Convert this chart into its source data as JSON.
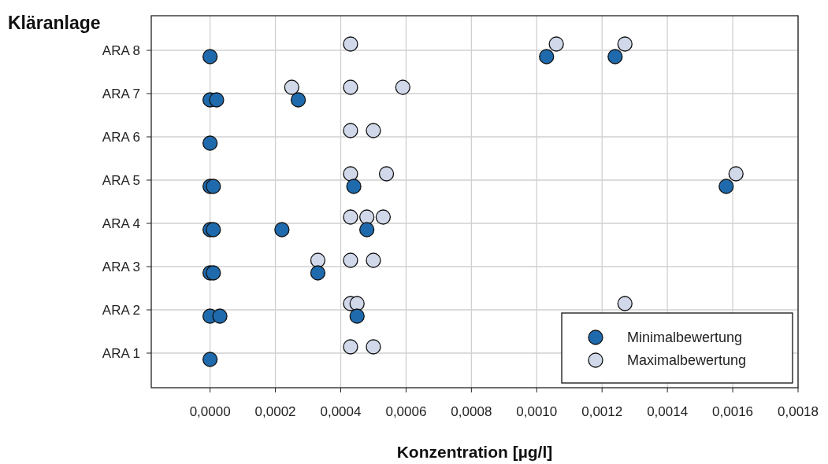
{
  "chart_data": {
    "type": "scatter",
    "orientation": "horizontal",
    "xlabel": "Konzentration [µg/l]",
    "ylabel": "Kläranlage",
    "categories": [
      "ARA 8",
      "ARA 7",
      "ARA 6",
      "ARA 5",
      "ARA 4",
      "ARA 3",
      "ARA 2",
      "ARA 1"
    ],
    "xlim": [
      -0.00018,
      0.0018
    ],
    "xticks": [
      {
        "value": 0,
        "label": "0,0000"
      },
      {
        "value": 0.0002,
        "label": "0,0002"
      },
      {
        "value": 0.0004,
        "label": "0,0004"
      },
      {
        "value": 0.0006,
        "label": "0,0006"
      },
      {
        "value": 0.0008,
        "label": "0,0008"
      },
      {
        "value": 0.001,
        "label": "0,0010"
      },
      {
        "value": 0.0012,
        "label": "0,0012"
      },
      {
        "value": 0.0014,
        "label": "0,0014"
      },
      {
        "value": 0.0016,
        "label": "0,0016"
      },
      {
        "value": 0.0018,
        "label": "0,0018"
      }
    ],
    "grid": true,
    "legend": "bottom right",
    "marker": "circle",
    "series": [
      {
        "name": "Minimalbewertung",
        "color": "#1f6aad",
        "x": [
          "ARA 1",
          "ARA 2",
          "ARA 2",
          "ARA 2",
          "ARA 3",
          "ARA 3",
          "ARA 3",
          "ARA 4",
          "ARA 4",
          "ARA 4",
          "ARA 4",
          "ARA 5",
          "ARA 5",
          "ARA 5",
          "ARA 5",
          "ARA 6",
          "ARA 7",
          "ARA 7",
          "ARA 7",
          "ARA 8",
          "ARA 8",
          "ARA 8"
        ],
        "values": [
          0,
          0,
          3e-05,
          0.00045,
          0,
          1e-05,
          0.00033,
          0,
          1e-05,
          0.00022,
          0.00048,
          0,
          1e-05,
          0.00044,
          0.00158,
          0,
          0,
          2e-05,
          0.00027,
          0,
          0.00103,
          0.00124
        ]
      },
      {
        "name": "Maximalbewertung",
        "color": "#d0d8ea",
        "x": [
          "ARA 1",
          "ARA 1",
          "ARA 2",
          "ARA 2",
          "ARA 2",
          "ARA 3",
          "ARA 3",
          "ARA 3",
          "ARA 4",
          "ARA 4",
          "ARA 4",
          "ARA 5",
          "ARA 5",
          "ARA 5",
          "ARA 6",
          "ARA 6",
          "ARA 7",
          "ARA 7",
          "ARA 7",
          "ARA 8",
          "ARA 8",
          "ARA 8"
        ],
        "values": [
          0.00043,
          0.0005,
          0.00043,
          0.00045,
          0.00127,
          0.00033,
          0.00043,
          0.0005,
          0.00043,
          0.00048,
          0.00053,
          0.00043,
          0.00054,
          0.00161,
          0.00043,
          0.0005,
          0.00025,
          0.00043,
          0.00059,
          0.00043,
          0.00106,
          0.00127
        ]
      }
    ]
  }
}
